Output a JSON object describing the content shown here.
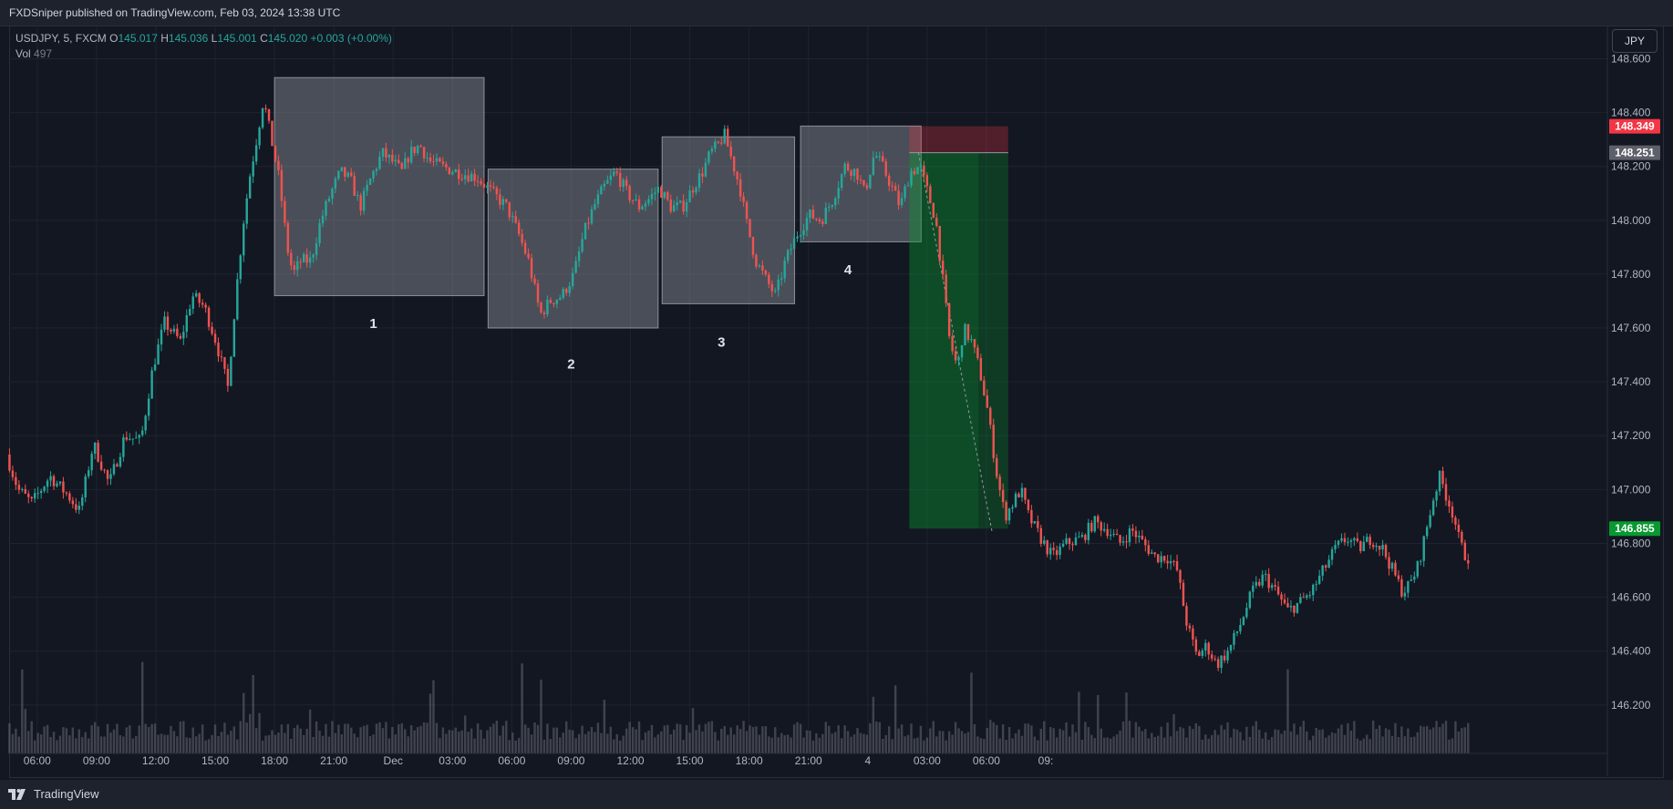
{
  "header": {
    "publish_line": "FXDSniper published on TradingView.com, Feb 03, 2024 13:38 UTC"
  },
  "legend": {
    "symbol": "USDJPY, 5, FXCM",
    "o_label": "O",
    "o_value": "145.017",
    "h_label": "H",
    "h_value": "145.036",
    "l_label": "L",
    "l_value": "145.001",
    "c_label": "C",
    "c_value": "145.020",
    "change": "+0.003 (+0.00%)",
    "vol_label": "Vol",
    "vol_value": "497"
  },
  "currency_button": "JPY",
  "footer": {
    "brand": "TradingView",
    "logo_icon": "tradingview-logo-icon"
  },
  "colors": {
    "background": "#131722",
    "up": "#26a69a",
    "down": "#ef5350",
    "grid": "#1f2330",
    "zone_fill": "#787b86",
    "target_zone": "#00c853",
    "stop_zone": "#ff2c2c"
  },
  "chart_data": {
    "type": "candlestick",
    "symbol": "USDJPY",
    "timeframe": "5",
    "y_ticks": [
      "148.600",
      "148.400",
      "148.200",
      "148.000",
      "147.800",
      "147.600",
      "147.400",
      "147.200",
      "147.000",
      "146.800",
      "146.600",
      "146.400",
      "146.200"
    ],
    "x_ticks": [
      "06:00",
      "09:00",
      "12:00",
      "15:00",
      "18:00",
      "21:00",
      "Dec",
      "03:00",
      "06:00",
      "09:00",
      "12:00",
      "15:00",
      "18:00",
      "21:00",
      "4",
      "03:00",
      "06:00",
      "09:"
    ],
    "ylim": [
      146.02,
      148.72
    ],
    "x_range_hours": [
      -1.42,
      79.4
    ],
    "price_path": [
      [
        -1.4,
        147.13
      ],
      [
        -0.8,
        147.0
      ],
      [
        -0.1,
        146.95
      ],
      [
        0.8,
        147.05
      ],
      [
        1.7,
        146.98
      ],
      [
        2.3,
        146.92
      ],
      [
        3.0,
        147.17
      ],
      [
        3.8,
        147.02
      ],
      [
        4.6,
        147.2
      ],
      [
        5.4,
        147.18
      ],
      [
        6.0,
        147.45
      ],
      [
        6.6,
        147.62
      ],
      [
        7.4,
        147.55
      ],
      [
        8.0,
        147.72
      ],
      [
        8.6,
        147.68
      ],
      [
        9.2,
        147.55
      ],
      [
        9.8,
        147.38
      ],
      [
        10.2,
        147.72
      ],
      [
        10.6,
        148.0
      ],
      [
        10.9,
        148.16
      ],
      [
        11.3,
        148.32
      ],
      [
        11.6,
        148.45
      ],
      [
        12.0,
        148.3
      ],
      [
        12.4,
        148.15
      ],
      [
        12.8,
        147.9
      ],
      [
        13.1,
        147.8
      ],
      [
        13.5,
        147.85
      ],
      [
        14.0,
        147.85
      ],
      [
        14.5,
        148.0
      ],
      [
        15.0,
        148.1
      ],
      [
        15.5,
        148.18
      ],
      [
        16.0,
        148.15
      ],
      [
        16.5,
        148.05
      ],
      [
        17.0,
        148.15
      ],
      [
        17.6,
        148.25
      ],
      [
        18.1,
        148.22
      ],
      [
        18.6,
        148.18
      ],
      [
        19.0,
        148.25
      ],
      [
        19.5,
        148.28
      ],
      [
        20.0,
        148.22
      ],
      [
        20.6,
        148.2
      ],
      [
        21.4,
        148.18
      ],
      [
        22.4,
        148.16
      ],
      [
        23.2,
        148.1
      ],
      [
        23.9,
        148.05
      ],
      [
        24.5,
        147.95
      ],
      [
        25.0,
        147.85
      ],
      [
        25.6,
        147.65
      ],
      [
        26.1,
        147.7
      ],
      [
        26.7,
        147.72
      ],
      [
        27.3,
        147.8
      ],
      [
        27.8,
        147.95
      ],
      [
        28.3,
        148.05
      ],
      [
        28.8,
        148.12
      ],
      [
        29.4,
        148.18
      ],
      [
        30.0,
        148.1
      ],
      [
        30.6,
        148.05
      ],
      [
        31.1,
        148.08
      ],
      [
        31.6,
        148.12
      ],
      [
        32.2,
        148.05
      ],
      [
        32.8,
        148.05
      ],
      [
        33.3,
        148.12
      ],
      [
        33.8,
        148.18
      ],
      [
        34.2,
        148.25
      ],
      [
        34.6,
        148.28
      ],
      [
        34.9,
        148.32
      ],
      [
        35.3,
        148.22
      ],
      [
        35.7,
        148.12
      ],
      [
        36.0,
        148.0
      ],
      [
        36.5,
        147.85
      ],
      [
        37.0,
        147.78
      ],
      [
        37.5,
        147.72
      ],
      [
        38.0,
        147.85
      ],
      [
        38.6,
        147.95
      ],
      [
        39.2,
        148.02
      ],
      [
        39.8,
        148.0
      ],
      [
        40.4,
        148.08
      ],
      [
        41.0,
        148.2
      ],
      [
        41.6,
        148.18
      ],
      [
        42.0,
        148.1
      ],
      [
        42.5,
        148.25
      ],
      [
        42.9,
        148.2
      ],
      [
        43.4,
        148.12
      ],
      [
        43.8,
        148.05
      ],
      [
        44.3,
        148.18
      ],
      [
        44.8,
        148.2
      ],
      [
        45.2,
        148.1
      ],
      [
        45.6,
        148.0
      ],
      [
        46.0,
        147.75
      ],
      [
        46.3,
        147.55
      ],
      [
        46.7,
        147.45
      ],
      [
        47.0,
        147.6
      ],
      [
        47.4,
        147.55
      ],
      [
        47.8,
        147.45
      ],
      [
        48.2,
        147.3
      ],
      [
        48.7,
        147.05
      ],
      [
        49.1,
        146.9
      ],
      [
        49.5,
        146.95
      ],
      [
        49.9,
        147.0
      ],
      [
        50.3,
        146.9
      ],
      [
        50.9,
        146.82
      ],
      [
        51.5,
        146.75
      ],
      [
        52.2,
        146.8
      ],
      [
        53.0,
        146.82
      ],
      [
        53.6,
        146.88
      ],
      [
        54.3,
        146.85
      ],
      [
        54.9,
        146.8
      ],
      [
        55.5,
        146.85
      ],
      [
        56.1,
        146.8
      ],
      [
        56.7,
        146.75
      ],
      [
        57.3,
        146.75
      ],
      [
        57.8,
        146.7
      ],
      [
        58.3,
        146.5
      ],
      [
        58.8,
        146.38
      ],
      [
        59.3,
        146.42
      ],
      [
        59.8,
        146.35
      ],
      [
        60.4,
        146.4
      ],
      [
        61.0,
        146.5
      ],
      [
        61.6,
        146.62
      ],
      [
        62.2,
        146.68
      ],
      [
        62.8,
        146.62
      ],
      [
        63.4,
        146.55
      ],
      [
        64.0,
        146.58
      ],
      [
        64.6,
        146.62
      ],
      [
        65.2,
        146.7
      ],
      [
        65.8,
        146.78
      ],
      [
        66.4,
        146.82
      ],
      [
        67.0,
        146.78
      ],
      [
        67.6,
        146.82
      ],
      [
        68.2,
        146.78
      ],
      [
        68.7,
        146.7
      ],
      [
        69.2,
        146.62
      ],
      [
        69.6,
        146.65
      ],
      [
        70.0,
        146.72
      ],
      [
        70.4,
        146.85
      ],
      [
        70.8,
        146.98
      ],
      [
        71.1,
        147.05
      ],
      [
        71.4,
        146.98
      ],
      [
        71.8,
        146.9
      ],
      [
        72.1,
        146.8
      ],
      [
        72.4,
        146.75
      ]
    ],
    "volume_max": 3000,
    "zones": [
      {
        "label": "1",
        "start_h": 12.0,
        "end_h": 22.6,
        "top": 148.53,
        "bottom": 147.72,
        "label_h": 17.0,
        "label_price": 147.6
      },
      {
        "label": "2",
        "start_h": 22.8,
        "end_h": 31.4,
        "top": 148.19,
        "bottom": 147.6,
        "label_h": 27.0,
        "label_price": 147.45
      },
      {
        "label": "3",
        "start_h": 31.6,
        "end_h": 38.3,
        "top": 148.31,
        "bottom": 147.69,
        "label_h": 34.6,
        "label_price": 147.53
      },
      {
        "label": "4",
        "start_h": 38.6,
        "end_h": 44.7,
        "top": 148.35,
        "bottom": 147.92,
        "label_h": 41.0,
        "label_price": 147.8
      }
    ],
    "position": {
      "direction": "short",
      "start_h": 44.1,
      "end_h": 49.1,
      "entry": 148.251,
      "stop": 148.349,
      "target": 146.855,
      "entry_label": "148.251",
      "stop_label": "148.349",
      "target_label": "146.855"
    }
  }
}
